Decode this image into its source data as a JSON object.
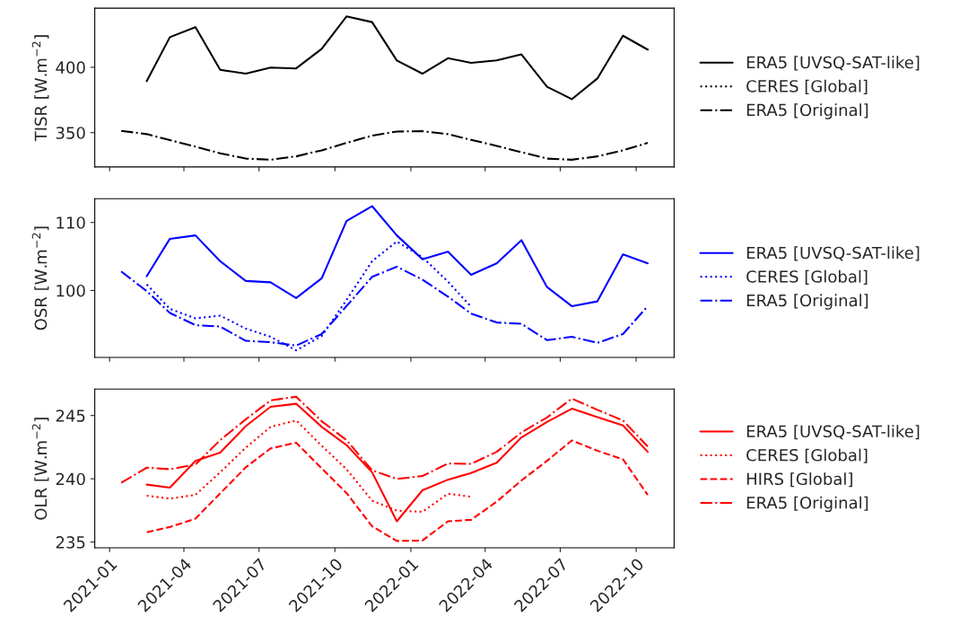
{
  "chart_data": [
    {
      "type": "line",
      "ylabel": "TISR [W.m$^{−2}$]",
      "legend": "right",
      "tick_labels": "y",
      "x": [
        "2021-01-15",
        "2021-02-15",
        "2021-03-15",
        "2021-04-15",
        "2021-05-15",
        "2021-06-15",
        "2021-07-15",
        "2021-08-15",
        "2021-09-15",
        "2021-10-15",
        "2021-11-15",
        "2021-12-15",
        "2022-01-15",
        "2022-02-15",
        "2022-03-15",
        "2022-04-15",
        "2022-05-15",
        "2022-06-15",
        "2022-07-15",
        "2022-08-15",
        "2022-09-15",
        "2022-10-15"
      ],
      "xlim": [
        "2020-12-14",
        "2022-11-16"
      ],
      "xticks": [
        {
          "value": "2021-01-01",
          "label": null
        },
        {
          "value": "2021-04-01",
          "label": null
        },
        {
          "value": "2021-07-01",
          "label": null
        },
        {
          "value": "2021-10-01",
          "label": null
        },
        {
          "value": "2022-01-01",
          "label": null
        },
        {
          "value": "2022-04-01",
          "label": null
        },
        {
          "value": "2022-07-01",
          "label": null
        },
        {
          "value": "2022-10-01",
          "label": null
        }
      ],
      "ylim": [
        323.8,
        445.1
      ],
      "yticks": [
        350,
        400
      ],
      "series": [
        {
          "name": "ERA5 [UVSQ-SAT-like]",
          "color": "#000000",
          "line_style": "solid",
          "values": [
            null,
            389.4,
            423,
            430.7,
            398,
            395.1,
            399.7,
            399.1,
            414.1,
            438.8,
            434.5,
            405.2,
            395.1,
            406.9,
            403.4,
            405.2,
            409.8,
            385.1,
            375.6,
            391.4,
            424.1,
            413.5
          ]
        },
        {
          "name": "CERES [Global]",
          "color": "#000000",
          "line_style": "dotted",
          "values": [
            null,
            null,
            null,
            null,
            null,
            null,
            null,
            null,
            null,
            null,
            null,
            null,
            null,
            null,
            null,
            null,
            null,
            null,
            null,
            null,
            null,
            null
          ]
        },
        {
          "name": "ERA5 [Original]",
          "color": "#000000",
          "line_style": "dashdot",
          "values": [
            351.4,
            348.9,
            344.3,
            339.4,
            334.2,
            330.2,
            329.3,
            331.9,
            336.5,
            342.2,
            347.7,
            350.9,
            351.1,
            348.9,
            344.5,
            339.9,
            335.1,
            330.2,
            329.3,
            331.9,
            336.5,
            342.2
          ]
        }
      ]
    },
    {
      "type": "line",
      "ylabel": "OSR [W.m$^{−2}$]",
      "legend": "right",
      "tick_labels": "y",
      "x": [
        "2021-01-15",
        "2021-02-15",
        "2021-03-15",
        "2021-04-15",
        "2021-05-15",
        "2021-06-15",
        "2021-07-15",
        "2021-08-15",
        "2021-09-15",
        "2021-10-15",
        "2021-11-15",
        "2021-12-15",
        "2022-01-15",
        "2022-02-15",
        "2022-03-15",
        "2022-04-15",
        "2022-05-15",
        "2022-06-15",
        "2022-07-15",
        "2022-08-15",
        "2022-09-15",
        "2022-10-15"
      ],
      "xlim": [
        "2020-12-14",
        "2022-11-16"
      ],
      "xticks": [
        {
          "value": "2021-01-01",
          "label": null
        },
        {
          "value": "2021-04-01",
          "label": null
        },
        {
          "value": "2021-07-01",
          "label": null
        },
        {
          "value": "2021-10-01",
          "label": null
        },
        {
          "value": "2022-01-01",
          "label": null
        },
        {
          "value": "2022-04-01",
          "label": null
        },
        {
          "value": "2022-07-01",
          "label": null
        },
        {
          "value": "2022-10-01",
          "label": null
        }
      ],
      "ylim": [
        90.17,
        113.5
      ],
      "yticks": [
        100,
        110
      ],
      "series": [
        {
          "name": "ERA5 [UVSQ-SAT-like]",
          "color": "#0000ff",
          "line_style": "solid",
          "values": [
            null,
            102.1,
            107.6,
            108.1,
            104.3,
            101.4,
            101.2,
            98.9,
            101.8,
            110.2,
            112.4,
            108.1,
            104.6,
            105.7,
            102.3,
            104.0,
            107.4,
            100.5,
            97.7,
            98.4,
            105.3,
            104.0
          ]
        },
        {
          "name": "CERES [Global]",
          "color": "#0000ff",
          "line_style": "dotted",
          "values": [
            null,
            100.9,
            97.3,
            95.9,
            96.3,
            94.4,
            93.2,
            91.2,
            93.3,
            98.6,
            104.3,
            107.2,
            104.9,
            101.3,
            97.6,
            null,
            null,
            null,
            null,
            null,
            null,
            null
          ]
        },
        {
          "name": "ERA5 [Original]",
          "color": "#0000ff",
          "line_style": "dashdot",
          "values": [
            102.8,
            99.9,
            96.7,
            94.9,
            94.7,
            92.6,
            92.4,
            91.9,
            93.6,
            97.7,
            102.0,
            103.5,
            101.6,
            99.1,
            96.6,
            95.3,
            95.1,
            92.7,
            93.2,
            92.3,
            93.6,
            97.7
          ]
        }
      ]
    },
    {
      "type": "line",
      "ylabel": "OLR [W.m$^{−2}$]",
      "legend": "right",
      "x": [
        "2021-01-15",
        "2021-02-15",
        "2021-03-15",
        "2021-04-15",
        "2021-05-15",
        "2021-06-15",
        "2021-07-15",
        "2021-08-15",
        "2021-09-15",
        "2021-10-15",
        "2021-11-15",
        "2021-12-15",
        "2022-01-15",
        "2022-02-15",
        "2022-03-15",
        "2022-04-15",
        "2022-05-15",
        "2022-06-15",
        "2022-07-15",
        "2022-08-15",
        "2022-09-15",
        "2022-10-15"
      ],
      "xlim": [
        "2020-12-14",
        "2022-11-16"
      ],
      "xticks": [
        {
          "value": "2021-01-01",
          "label": "2021-01"
        },
        {
          "value": "2021-04-01",
          "label": "2021-04"
        },
        {
          "value": "2021-07-01",
          "label": "2021-07"
        },
        {
          "value": "2021-10-01",
          "label": "2021-10"
        },
        {
          "value": "2022-01-01",
          "label": "2022-01"
        },
        {
          "value": "2022-04-01",
          "label": "2022-04"
        },
        {
          "value": "2022-07-01",
          "label": "2022-07"
        },
        {
          "value": "2022-10-01",
          "label": "2022-10"
        }
      ],
      "ylim": [
        234.55,
        247.09
      ],
      "yticks": [
        235,
        240,
        245
      ],
      "series": [
        {
          "name": "ERA5 [UVSQ-SAT-like]",
          "color": "#ff0000",
          "line_style": "solid",
          "values": [
            null,
            239.54,
            239.3,
            241.42,
            242.07,
            244.16,
            245.69,
            245.93,
            244.1,
            242.67,
            240.52,
            236.64,
            239.09,
            239.93,
            240.46,
            241.27,
            243.27,
            244.49,
            245.54,
            244.88,
            244.22,
            242.13
          ]
        },
        {
          "name": "CERES [Global]",
          "color": "#ff0000",
          "line_style": "dotted",
          "values": [
            null,
            238.67,
            238.43,
            238.73,
            240.52,
            242.46,
            244.1,
            244.61,
            242.61,
            240.76,
            238.28,
            237.48,
            237.39,
            238.82,
            238.58,
            null,
            null,
            null,
            null,
            null,
            null,
            null
          ]
        },
        {
          "name": "HIRS [Global]",
          "color": "#ff0000",
          "line_style": "dashed",
          "values": [
            null,
            235.78,
            236.19,
            236.85,
            238.85,
            240.91,
            242.4,
            242.85,
            240.82,
            238.88,
            236.25,
            235.09,
            235.12,
            236.64,
            236.76,
            238.19,
            239.87,
            241.42,
            243.03,
            242.22,
            241.54,
            238.73
          ]
        },
        {
          "name": "ERA5 [Original]",
          "color": "#ff0000",
          "line_style": "dashdot",
          "values": [
            239.69,
            240.88,
            240.76,
            241.12,
            243.06,
            244.7,
            246.19,
            246.49,
            244.55,
            243.06,
            240.67,
            239.99,
            240.22,
            241.21,
            241.18,
            242.13,
            243.66,
            244.85,
            246.34,
            245.45,
            244.61,
            242.55
          ]
        }
      ]
    }
  ]
}
